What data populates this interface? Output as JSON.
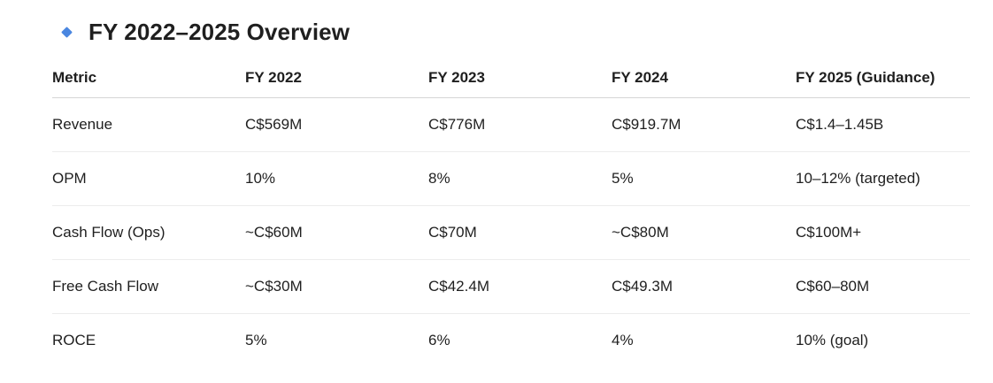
{
  "section": {
    "title": "FY 2022–2025 Overview",
    "icon": "diamond-bullet-icon",
    "icon_color": "#4a86e0"
  },
  "table": {
    "headers": [
      "Metric",
      "FY 2022",
      "FY 2023",
      "FY 2024",
      "FY 2025 (Guidance)"
    ],
    "rows": [
      [
        "Revenue",
        "C$569M",
        "C$776M",
        "C$919.7M",
        "C$1.4–1.45B"
      ],
      [
        "OPM",
        "10%",
        "8%",
        "5%",
        "10–12% (targeted)"
      ],
      [
        "Cash Flow (Ops)",
        "~C$60M",
        "C$70M",
        "~C$80M",
        "C$100M+"
      ],
      [
        "Free Cash Flow",
        "~C$30M",
        "C$42.4M",
        "C$49.3M",
        "C$60–80M"
      ],
      [
        "ROCE",
        "5%",
        "6%",
        "4%",
        "10% (goal)"
      ]
    ]
  }
}
